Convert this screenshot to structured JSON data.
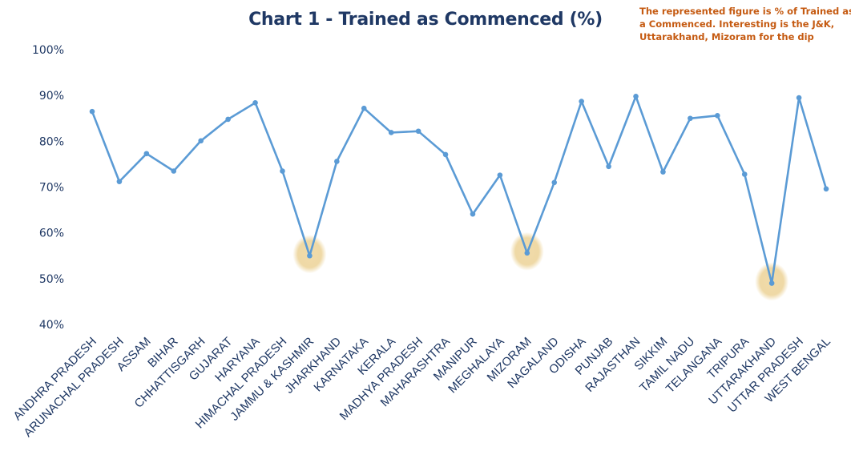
{
  "chart_data": {
    "type": "line",
    "title": "Chart 1 - Trained as Commenced (%)",
    "annotation_lines": [
      "The represented figure is % of Trained as",
      "a Commenced. Interesting is the J&K,",
      "Uttarakhand, Mizoram for the dip"
    ],
    "categories": [
      "ANDHRA PRADESH",
      "ARUNACHAL PRADESH",
      "ASSAM",
      "BIHAR",
      "CHHATTISGARH",
      "GUJARAT",
      "HARYANA",
      "HIMACHAL PRADESH",
      "JAMMU & KASHMIR",
      "JHARKHAND",
      "KARNATAKA",
      "KERALA",
      "MADHYA PRADESH",
      "MAHARASHTRA",
      "MANIPUR",
      "MEGHALAYA",
      "MIZORAM",
      "NAGALAND",
      "ODISHA",
      "PUNJAB",
      "RAJASTHAN",
      "SIKKIM",
      "TAMIL NADU",
      "TELANGANA",
      "TRIPURA",
      "UTTARAKHAND",
      "UTTAR PRADESH",
      "WEST BENGAL"
    ],
    "values": [
      86.5,
      71.2,
      77.3,
      73.5,
      80.1,
      84.8,
      88.4,
      73.5,
      55.0,
      75.6,
      87.2,
      81.9,
      82.2,
      77.1,
      64.1,
      72.6,
      55.6,
      71.0,
      88.7,
      74.5,
      89.8,
      73.3,
      85.0,
      85.6,
      72.8,
      49.0,
      89.5,
      69.6
    ],
    "highlighted": [
      "JAMMU & KASHMIR",
      "MIZORAM",
      "UTTARAKHAND"
    ],
    "ylim": [
      40,
      100
    ],
    "yticks": [
      "40%",
      "50%",
      "60%",
      "70%",
      "80%",
      "90%",
      "100%"
    ],
    "ytick_values": [
      40,
      50,
      60,
      70,
      80,
      90,
      100
    ],
    "grid": false,
    "legend": "none",
    "colors": {
      "line": "#5b9bd5",
      "marker": "#5b9bd5",
      "highlight": "#f2d9a0",
      "text": "#1f3864",
      "annotation": "#c55a11"
    }
  }
}
